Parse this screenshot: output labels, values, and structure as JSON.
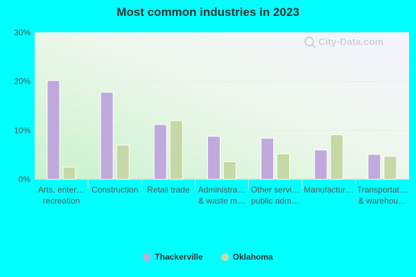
{
  "chart_data": {
    "type": "bar",
    "title": "Most common industries in 2023",
    "xlabel": "",
    "ylabel": "",
    "ylim": [
      0,
      30
    ],
    "yticks": [
      "0%",
      "10%",
      "20%",
      "30%"
    ],
    "categories": [
      [
        "Arts, enter…",
        "recreation"
      ],
      [
        "Construction"
      ],
      [
        "Retail trade"
      ],
      [
        "Administra…",
        "& waste m…"
      ],
      [
        "Other servi…",
        "public adm…"
      ],
      [
        "Manufactur…"
      ],
      [
        "Transportat…",
        "& warehou…"
      ]
    ],
    "series": [
      {
        "name": "Thackerville",
        "color": "#c0a9dc",
        "values": [
          20.2,
          17.8,
          11.2,
          8.8,
          8.4,
          6.0,
          5.1
        ]
      },
      {
        "name": "Oklahoma",
        "color": "#c5d8a6",
        "values": [
          2.5,
          7.0,
          12.0,
          3.6,
          5.2,
          9.1,
          4.7
        ]
      }
    ],
    "grid": true,
    "legend": "bottom"
  }
}
